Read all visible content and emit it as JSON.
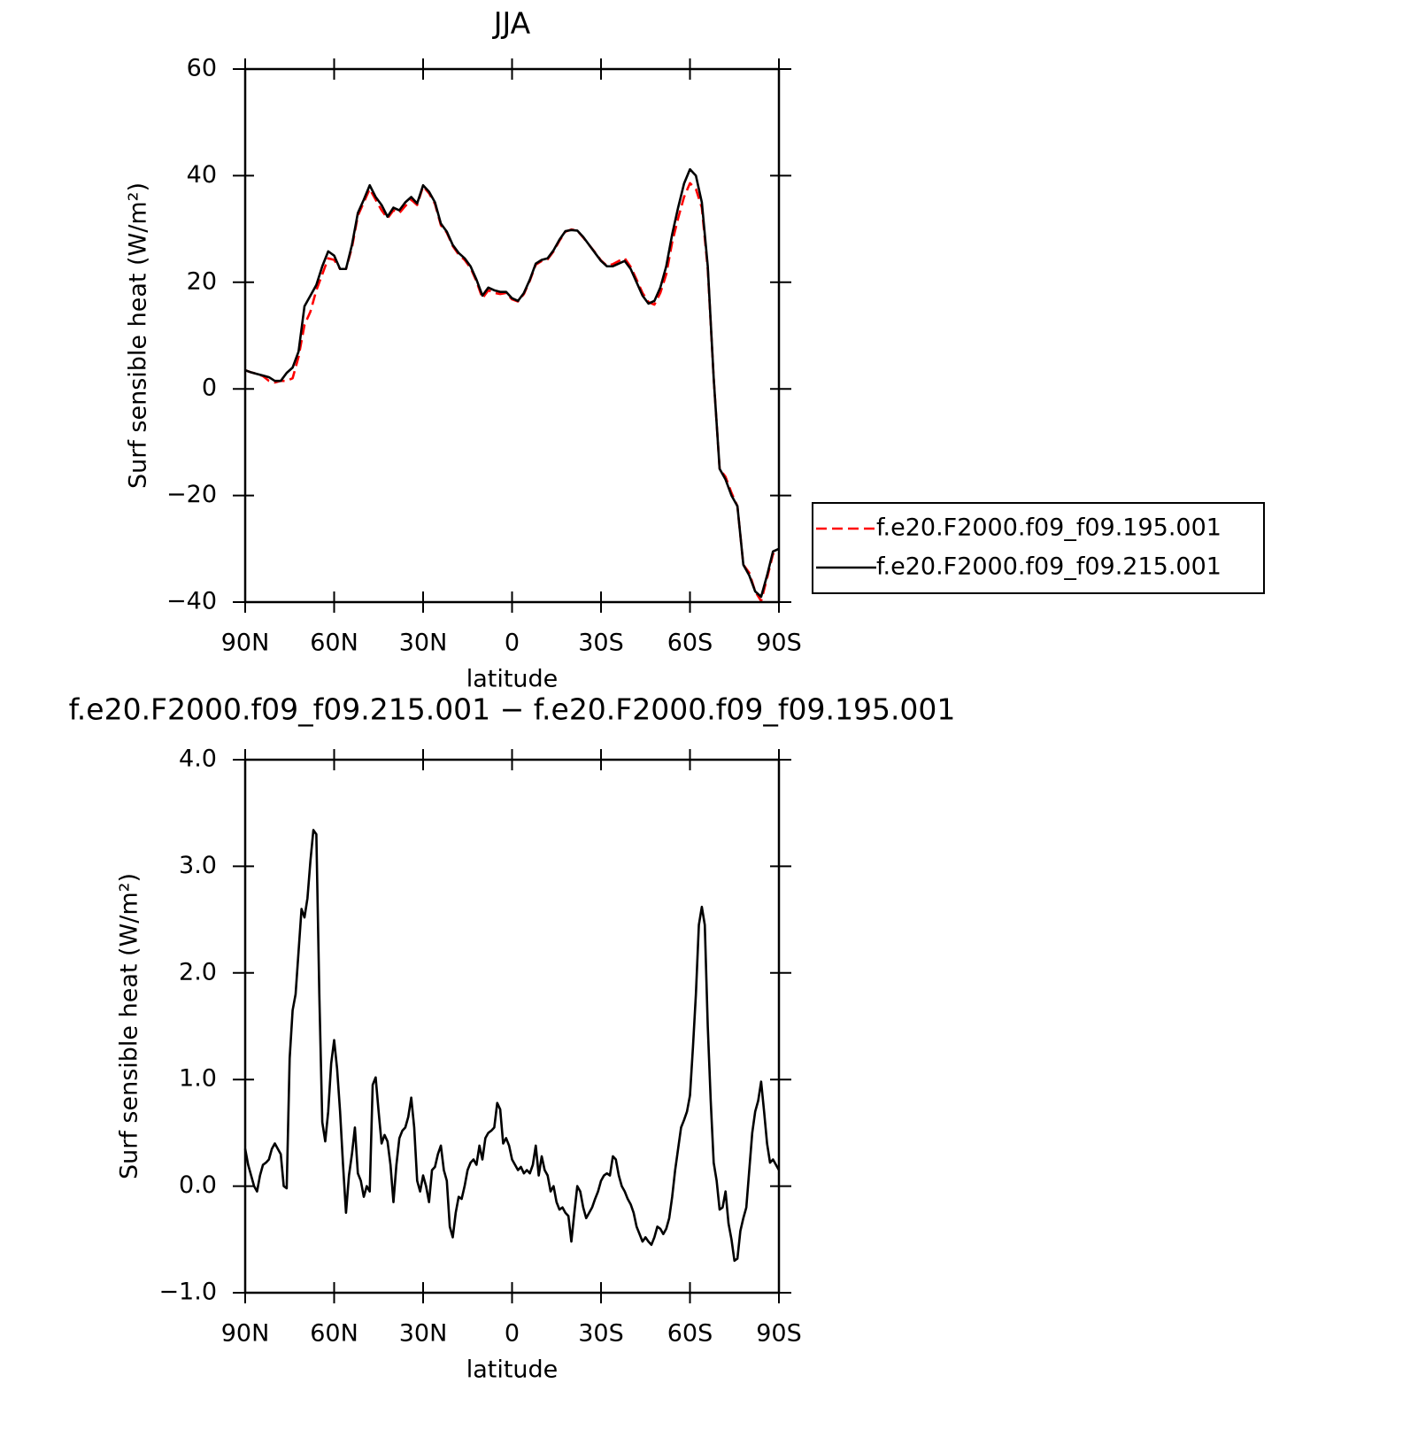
{
  "chart_data": [
    {
      "type": "line",
      "title": "JJA",
      "x_label": "latitude",
      "y_label": "Surf sensible heat (W/m²)",
      "xlim": [
        90,
        -90
      ],
      "xticks": [
        {
          "value": 90,
          "label": "90N"
        },
        {
          "value": 60,
          "label": "60N"
        },
        {
          "value": 30,
          "label": "30N"
        },
        0,
        {
          "value": -30,
          "label": "30S"
        },
        {
          "value": -60,
          "label": "60S"
        },
        {
          "value": -90,
          "label": "90S"
        }
      ],
      "ylim": [
        -40,
        60
      ],
      "yticks": [
        {
          "value": -40,
          "label": "−40"
        },
        {
          "value": -20,
          "label": "−20"
        },
        0,
        20,
        40,
        60
      ],
      "legend": "right",
      "x": [
        90,
        88,
        86,
        84,
        82,
        80,
        78,
        76,
        74,
        72,
        70,
        68,
        66,
        64,
        62,
        60,
        58,
        56,
        54,
        52,
        50,
        48,
        46,
        44,
        42,
        40,
        38,
        36,
        34,
        32,
        30,
        28,
        26,
        24,
        22,
        20,
        18,
        16,
        14,
        12,
        10,
        8,
        6,
        4,
        2,
        0,
        -2,
        -4,
        -6,
        -8,
        -10,
        -12,
        -14,
        -16,
        -18,
        -20,
        -22,
        -24,
        -26,
        -28,
        -30,
        -32,
        -34,
        -36,
        -38,
        -40,
        -42,
        -44,
        -46,
        -48,
        -50,
        -52,
        -54,
        -56,
        -58,
        -60,
        -62,
        -64,
        -66,
        -68,
        -70,
        -72,
        -74,
        -76,
        -78,
        -80,
        -82,
        -84,
        -86,
        -88,
        -90
      ],
      "series": [
        {
          "name": "f.e20.F2000.f09_f09.195.001",
          "color": "#ff0000",
          "dash": "dashed",
          "values": [
            3.5,
            3.1,
            2.8,
            2.4,
            1.5,
            1.2,
            1.5,
            1.5,
            2,
            6,
            12,
            14.5,
            18.5,
            21.5,
            24.5,
            24.2,
            22.5,
            22.5,
            26.5,
            32.5,
            35,
            37.5,
            35.5,
            33.5,
            32,
            33.5,
            33,
            34.3,
            35.5,
            34.5,
            38,
            36.7,
            34.7,
            30.7,
            29.3,
            26.8,
            25.2,
            24.2,
            22.7,
            20.2,
            17,
            18.5,
            18,
            17.8,
            18,
            16.8,
            16.4,
            17.8,
            20.3,
            23.3,
            24,
            24.3,
            25.8,
            27.8,
            29.5,
            29.9,
            29.7,
            28.4,
            27,
            25.6,
            24.1,
            23.1,
            23.4,
            24,
            24.5,
            22.9,
            20.5,
            18,
            16.3,
            15.8,
            18,
            21.5,
            27.5,
            32,
            36,
            38.6,
            37.5,
            34,
            22.5,
            2,
            -15,
            -16.5,
            -19.5,
            -22,
            -33,
            -34.5,
            -38,
            -39.8,
            -35.5,
            -31,
            -30
          ]
        },
        {
          "name": "f.e20.F2000.f09_f09.215.001",
          "color": "#000000",
          "dash": "solid",
          "values": [
            3.5,
            3.1,
            2.8,
            2.5,
            2.2,
            1.5,
            1.5,
            3,
            4,
            7,
            15.5,
            17.5,
            19.5,
            23,
            25.8,
            25,
            22.5,
            22.5,
            27,
            33,
            35.5,
            38.2,
            36,
            34.5,
            32.3,
            34,
            33.5,
            35,
            36,
            34.8,
            38.2,
            37,
            35,
            31,
            29.5,
            27,
            25.5,
            24.5,
            23,
            20.5,
            17.5,
            19,
            18.5,
            18.2,
            18.2,
            17,
            16.5,
            18,
            20.5,
            23.5,
            24.2,
            24.5,
            26,
            28,
            29.6,
            29.8,
            29.7,
            28.5,
            27,
            25.5,
            24,
            23,
            23,
            23.5,
            24,
            22.5,
            20,
            17.5,
            16,
            16.5,
            19,
            23,
            29,
            34,
            38.5,
            41.2,
            40,
            35,
            23,
            2,
            -15,
            -17,
            -20,
            -22,
            -33,
            -35,
            -38,
            -39,
            -35,
            -30.5,
            -30
          ]
        }
      ]
    },
    {
      "type": "line",
      "title": "f.e20.F2000.f09_f09.215.001 − f.e20.F2000.f09_f09.195.001",
      "x_label": "latitude",
      "y_label": "Surf sensible heat (W/m²)",
      "xlim": [
        90,
        -90
      ],
      "xticks": [
        {
          "value": 90,
          "label": "90N"
        },
        {
          "value": 60,
          "label": "60N"
        },
        {
          "value": 30,
          "label": "30N"
        },
        0,
        {
          "value": -30,
          "label": "30S"
        },
        {
          "value": -60,
          "label": "60S"
        },
        {
          "value": -90,
          "label": "90S"
        }
      ],
      "ylim": [
        -1,
        4
      ],
      "yticks": [
        {
          "value": -1,
          "label": "−1.0"
        },
        {
          "value": 0,
          "label": "0.0"
        },
        {
          "value": 1,
          "label": "1.0"
        },
        {
          "value": 2,
          "label": "2.0"
        },
        {
          "value": 3,
          "label": "3.0"
        },
        {
          "value": 4,
          "label": "4.0"
        }
      ],
      "x": [
        90,
        89,
        88,
        87,
        86,
        85,
        84,
        83,
        82,
        81,
        80,
        79,
        78,
        77,
        76,
        75,
        74,
        73,
        72,
        71,
        70,
        69,
        68,
        67,
        66,
        65,
        64,
        63,
        62,
        61,
        60,
        59,
        58,
        57,
        56,
        55,
        54,
        53,
        52,
        51,
        50,
        49,
        48,
        47,
        46,
        45,
        44,
        43,
        42,
        41,
        40,
        39,
        38,
        37,
        36,
        35,
        34,
        33,
        32,
        31,
        30,
        29,
        28,
        27,
        26,
        25,
        24,
        23,
        22,
        21,
        20,
        19,
        18,
        17,
        16,
        15,
        14,
        13,
        12,
        11,
        10,
        9,
        8,
        7,
        6,
        5,
        4,
        3,
        2,
        1,
        0,
        -1,
        -2,
        -3,
        -4,
        -5,
        -6,
        -7,
        -8,
        -9,
        -10,
        -11,
        -12,
        -13,
        -14,
        -15,
        -16,
        -17,
        -18,
        -19,
        -20,
        -21,
        -22,
        -23,
        -24,
        -25,
        -26,
        -27,
        -28,
        -29,
        -30,
        -31,
        -32,
        -33,
        -34,
        -35,
        -36,
        -37,
        -38,
        -39,
        -40,
        -41,
        -42,
        -43,
        -44,
        -45,
        -46,
        -47,
        -48,
        -49,
        -50,
        -51,
        -52,
        -53,
        -54,
        -55,
        -56,
        -57,
        -58,
        -59,
        -60,
        -61,
        -62,
        -63,
        -64,
        -65,
        -66,
        -67,
        -68,
        -69,
        -70,
        -71,
        -72,
        -73,
        -74,
        -75,
        -76,
        -77,
        -78,
        -79,
        -80,
        -81,
        -82,
        -83,
        -84,
        -85,
        -86,
        -87,
        -88,
        -89,
        -90
      ],
      "series": [
        {
          "color": "#000000",
          "dash": "solid",
          "values": [
            0.35,
            0.2,
            0.1,
            0.0,
            -0.05,
            0.1,
            0.2,
            0.22,
            0.25,
            0.35,
            0.4,
            0.35,
            0.3,
            0.0,
            -0.02,
            1.2,
            1.65,
            1.8,
            2.2,
            2.6,
            2.52,
            2.7,
            3.05,
            3.34,
            3.3,
            1.8,
            0.6,
            0.42,
            0.7,
            1.15,
            1.37,
            1.1,
            0.7,
            0.2,
            -0.25,
            0.1,
            0.3,
            0.55,
            0.12,
            0.05,
            -0.1,
            0.0,
            -0.05,
            0.95,
            1.02,
            0.7,
            0.4,
            0.48,
            0.42,
            0.2,
            -0.15,
            0.2,
            0.45,
            0.52,
            0.55,
            0.65,
            0.83,
            0.55,
            0.05,
            -0.05,
            0.1,
            0.0,
            -0.15,
            0.15,
            0.18,
            0.3,
            0.38,
            0.15,
            0.05,
            -0.38,
            -0.48,
            -0.25,
            -0.1,
            -0.12,
            0.0,
            0.15,
            0.22,
            0.25,
            0.2,
            0.38,
            0.25,
            0.45,
            0.5,
            0.52,
            0.55,
            0.78,
            0.72,
            0.4,
            0.45,
            0.38,
            0.25,
            0.2,
            0.15,
            0.18,
            0.12,
            0.15,
            0.12,
            0.2,
            0.38,
            0.1,
            0.28,
            0.15,
            0.1,
            -0.05,
            0.0,
            -0.15,
            -0.22,
            -0.2,
            -0.25,
            -0.28,
            -0.52,
            -0.25,
            0.0,
            -0.05,
            -0.2,
            -0.3,
            -0.25,
            -0.2,
            -0.12,
            -0.05,
            0.05,
            0.1,
            0.12,
            0.1,
            0.28,
            0.25,
            0.1,
            0.0,
            -0.05,
            -0.12,
            -0.17,
            -0.25,
            -0.38,
            -0.45,
            -0.52,
            -0.48,
            -0.52,
            -0.55,
            -0.48,
            -0.38,
            -0.4,
            -0.45,
            -0.4,
            -0.3,
            -0.1,
            0.15,
            0.35,
            0.55,
            0.62,
            0.7,
            0.85,
            1.3,
            1.8,
            2.45,
            2.62,
            2.45,
            1.5,
            0.8,
            0.22,
            0.05,
            -0.22,
            -0.2,
            -0.05,
            -0.35,
            -0.5,
            -0.7,
            -0.68,
            -0.42,
            -0.3,
            -0.2,
            0.15,
            0.5,
            0.7,
            0.8,
            0.98,
            0.7,
            0.4,
            0.22,
            0.25,
            0.2,
            0.15
          ]
        }
      ]
    }
  ]
}
